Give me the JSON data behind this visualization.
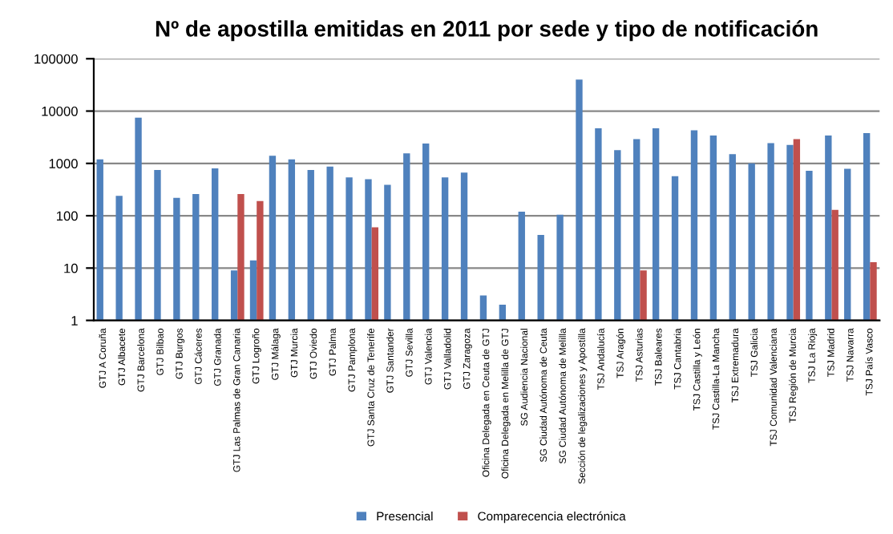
{
  "chart_data": {
    "type": "bar",
    "title": "Nº de apostilla emitidas en 2011 por sede y tipo de notificación",
    "categories": [
      "GTJ A Coruña",
      "GTJ Albacete",
      "GTJ Barcelona",
      "GTJ Bilbao",
      "GTJ Burgos",
      "GTJ Cáceres",
      "GTJ Granada",
      "GTJ Las Palmas de Gran Canaria",
      "GTJ Logroño",
      "GTJ Málaga",
      "GTJ Murcia",
      "GTJ Oviedo",
      "GTJ Palma",
      "GTJ Pamplona",
      "GTJ Santa Cruz de Tenerife",
      "GTJ Santander",
      "GTJ Sevilla",
      "GTJ Valencia",
      "GTJ Valladolid",
      "GTJ Zaragoza",
      "Oficina Delegada en Ceuta de GTJ",
      "Oficina Delegada en Melilla de GTJ",
      "SG Audiencia Nacional",
      "SG Ciudad Autónoma de Ceuta",
      "SG Ciudad Autónoma de Melilla",
      "Sección de legalizaciones y Apostilla",
      "TSJ Andalucía",
      "TSJ Aragón",
      "TSJ Asturias",
      "TSJ Baleares",
      "TSJ Cantabria",
      "TSJ Castilla y León",
      "TSJ Castilla-La Mancha",
      "TSJ Extremadura",
      "TSJ Galicia",
      "TSJ Comunidad Valenciana",
      "TSJ Región de Murcia",
      "TSJ La Rioja",
      "TSJ Madrid",
      "TSJ Navarra",
      "TSJ País Vasco"
    ],
    "series": [
      {
        "name": "Presencial",
        "color": "#4f81bd",
        "values": [
          1200,
          240,
          7500,
          750,
          220,
          260,
          800,
          9,
          14,
          1400,
          1200,
          750,
          870,
          540,
          500,
          390,
          1550,
          2400,
          540,
          670,
          3,
          2,
          120,
          43,
          105,
          40000,
          4700,
          1800,
          2900,
          4700,
          570,
          4300,
          3400,
          1500,
          1000,
          2450,
          2250,
          720,
          3400,
          790,
          3800
        ]
      },
      {
        "name": "Comparecencia electrónica",
        "color": "#c0504d",
        "values": [
          null,
          null,
          null,
          null,
          null,
          null,
          null,
          260,
          190,
          null,
          null,
          null,
          null,
          null,
          60,
          null,
          null,
          null,
          null,
          null,
          null,
          null,
          null,
          null,
          null,
          null,
          null,
          null,
          9,
          null,
          null,
          null,
          null,
          null,
          null,
          null,
          2900,
          null,
          130,
          null,
          13
        ]
      }
    ],
    "log": "y",
    "ylim": [
      1,
      100000
    ],
    "yticks": [
      1,
      10,
      100,
      1000,
      10000,
      100000
    ],
    "grid": "y",
    "legend": "bottom"
  }
}
